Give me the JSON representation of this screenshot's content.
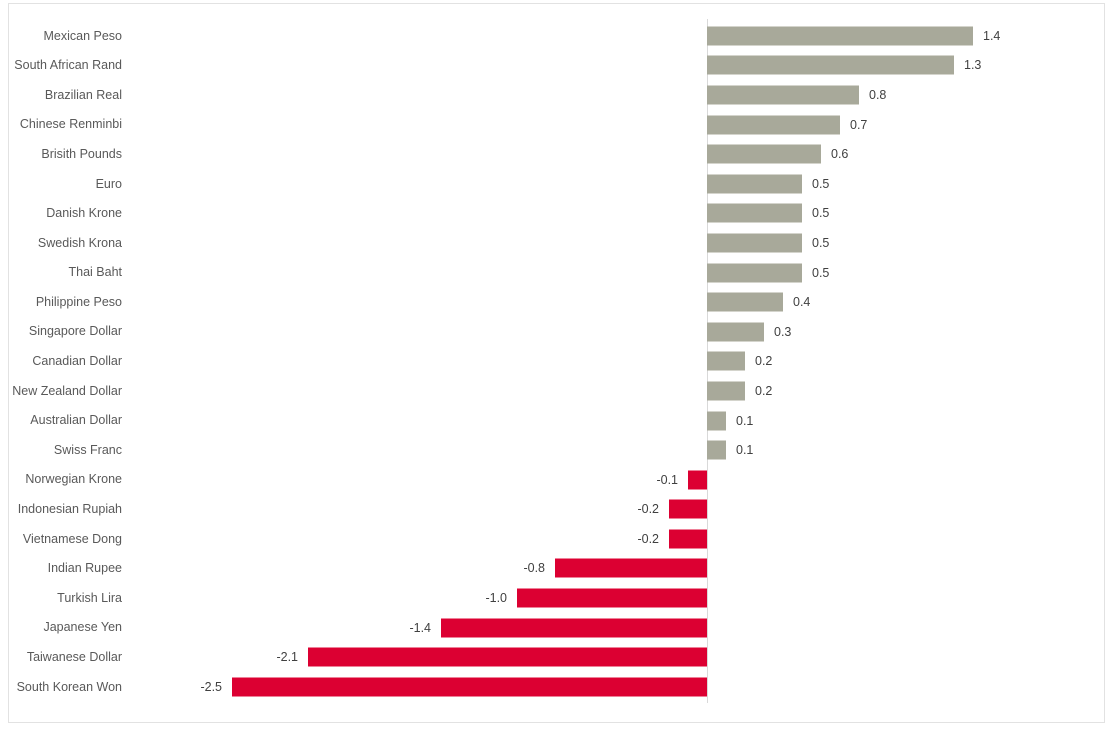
{
  "frame": {
    "background": "#ffffff",
    "border_color": "#e2e2e2"
  },
  "chart_data": {
    "type": "bar",
    "orientation": "horizontal",
    "title": "",
    "xlabel": "",
    "ylabel": "",
    "xlim": [
      -2.5,
      1.4
    ],
    "grid": false,
    "legend": false,
    "baseline": 0,
    "categories": [
      "Mexican Peso",
      "South African Rand",
      "Brazilian Real",
      "Chinese Renminbi",
      "Brisith Pounds",
      "Euro",
      "Danish Krone",
      "Swedish Krona",
      "Thai Baht",
      "Philippine Peso",
      "Singapore Dollar",
      "Canadian Dollar",
      "New Zealand Dollar",
      "Australian Dollar",
      "Swiss Franc",
      "Norwegian Krone",
      "Indonesian Rupiah",
      "Vietnamese Dong",
      "Indian Rupee",
      "Turkish Lira",
      "Japanese Yen",
      "Taiwanese Dollar",
      "South Korean Won"
    ],
    "values": [
      1.4,
      1.3,
      0.8,
      0.7,
      0.6,
      0.5,
      0.5,
      0.5,
      0.5,
      0.4,
      0.3,
      0.2,
      0.2,
      0.1,
      0.1,
      -0.1,
      -0.2,
      -0.2,
      -0.8,
      -1.0,
      -1.4,
      -2.1,
      -2.5
    ],
    "value_labels": [
      "1.4",
      "1.3",
      "0.8",
      "0.7",
      "0.6",
      "0.5",
      "0.5",
      "0.5",
      "0.5",
      "0.4",
      "0.3",
      "0.2",
      "0.2",
      "0.1",
      "0.1",
      "-0.1",
      "-0.2",
      "-0.2",
      "-0.8",
      "-1.0",
      "-1.4",
      "-2.1",
      "-2.5"
    ],
    "colors": {
      "positive_bar": "#a8a99a",
      "negative_bar": "#dc0032",
      "axis_line": "#d9d9d9",
      "category_label": "#595959",
      "value_label": "#404040"
    }
  }
}
